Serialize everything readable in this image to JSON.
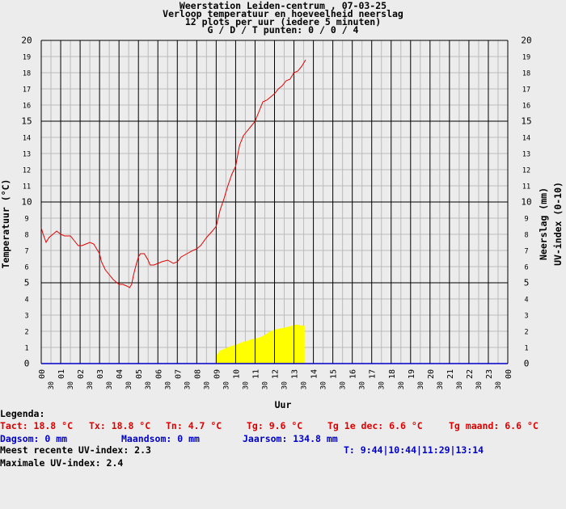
{
  "header": {
    "line1": "Weerstation Leiden-centrum , 07-03-25",
    "line2": "Verloop temperatuur en hoeveelheid neerslag",
    "line3": "12 plots per uur (iedere 5 minuten)",
    "line4": "G / D / T punten: 0 / 0 / 4"
  },
  "chart_data": {
    "type": "line",
    "xlabel": "Uur",
    "ylabel_left": "Temperatuur (°C)",
    "ylabel_right_1": "Neerslag (mm)",
    "ylabel_right_2": "UV-index (0-10)",
    "ylim": [
      0,
      20
    ],
    "xlim_hours": [
      0,
      24
    ],
    "hour_tick_labels": [
      "00",
      "01",
      "02",
      "03",
      "04",
      "05",
      "06",
      "07",
      "08",
      "09",
      "10",
      "11",
      "12",
      "13",
      "14",
      "15",
      "16",
      "17",
      "18",
      "19",
      "20",
      "21",
      "22",
      "23",
      "00"
    ],
    "half_hour_tick_label": "30",
    "y_ticks": [
      0,
      1,
      2,
      3,
      4,
      5,
      6,
      7,
      8,
      9,
      10,
      11,
      12,
      13,
      14,
      15,
      16,
      17,
      18,
      19,
      20
    ],
    "major_y_ticks": [
      0,
      5,
      10,
      15,
      20
    ],
    "grid": true,
    "colors": {
      "temperature": "#e00000",
      "uv": "#ffff00",
      "precipitation": "#0000cc",
      "major_grid": "#000000",
      "minor_grid": "#bbbbbb"
    },
    "series": [
      {
        "name": "Temperatuur",
        "x_hours": [
          0.0,
          0.1,
          0.25,
          0.4,
          0.6,
          0.8,
          1.0,
          1.2,
          1.5,
          1.7,
          1.9,
          2.1,
          2.3,
          2.5,
          2.7,
          2.9,
          3.0,
          3.1,
          3.3,
          3.5,
          3.7,
          3.9,
          4.0,
          4.2,
          4.4,
          4.55,
          4.65,
          4.75,
          4.9,
          5.0,
          5.1,
          5.3,
          5.5,
          5.6,
          5.8,
          6.0,
          6.2,
          6.5,
          6.8,
          7.0,
          7.2,
          7.5,
          7.8,
          8.0,
          8.2,
          8.5,
          8.8,
          9.0,
          9.2,
          9.4,
          9.6,
          9.8,
          10.0,
          10.2,
          10.4,
          10.6,
          10.8,
          11.0,
          11.2,
          11.4,
          11.6,
          11.8,
          12.0,
          12.2,
          12.4,
          12.6,
          12.8,
          13.0,
          13.2,
          13.4,
          13.6
        ],
        "values": [
          8.4,
          8.0,
          7.5,
          7.8,
          8.0,
          8.2,
          8.0,
          7.9,
          7.9,
          7.6,
          7.3,
          7.3,
          7.4,
          7.5,
          7.4,
          7.0,
          6.8,
          6.3,
          5.8,
          5.5,
          5.2,
          5.0,
          4.9,
          4.9,
          4.8,
          4.7,
          4.9,
          5.5,
          6.2,
          6.6,
          6.8,
          6.8,
          6.4,
          6.1,
          6.1,
          6.2,
          6.3,
          6.4,
          6.2,
          6.3,
          6.6,
          6.8,
          7.0,
          7.1,
          7.3,
          7.8,
          8.2,
          8.5,
          9.5,
          10.2,
          11.0,
          11.7,
          12.2,
          13.5,
          14.1,
          14.4,
          14.7,
          15.0,
          15.6,
          16.2,
          16.3,
          16.5,
          16.7,
          17.0,
          17.2,
          17.5,
          17.6,
          18.0,
          18.1,
          18.4,
          18.8
        ]
      },
      {
        "name": "UV-index",
        "x_hours": [
          9.0,
          9.2,
          9.4,
          9.6,
          9.8,
          10.0,
          10.2,
          10.4,
          10.6,
          10.8,
          11.0,
          11.2,
          11.4,
          11.6,
          11.8,
          12.0,
          12.2,
          12.4,
          12.6,
          12.8,
          13.0,
          13.2,
          13.4,
          13.55
        ],
        "values": [
          0.5,
          0.8,
          0.9,
          1.0,
          1.1,
          1.15,
          1.25,
          1.35,
          1.4,
          1.5,
          1.55,
          1.6,
          1.7,
          1.85,
          2.0,
          2.1,
          2.15,
          2.2,
          2.25,
          2.3,
          2.4,
          2.4,
          2.35,
          2.35
        ]
      },
      {
        "name": "Neerslag",
        "x_hours": [
          0,
          24
        ],
        "values": [
          0,
          0
        ]
      }
    ]
  },
  "info": {
    "legenda": "Legenda:",
    "tact": "Tact: 18.8 °C",
    "tx": "Tx: 18.8 °C",
    "tn": "Tn: 4.7 °C",
    "tg": "Tg: 9.6 °C",
    "tg_dec": "Tg 1e dec: 6.6 °C",
    "tg_maand": "Tg maand: 6.6 °C",
    "dagsom": "Dagsom: 0 mm",
    "maandsom": "Maandsom: 0 mm",
    "jaarsom": "Jaarsom: 134.8 mm",
    "uv_recent": "Meest recente UV-index: 2.3",
    "uv_times": "T: 9:44|10:44|11:29|13:14",
    "uv_max": "Maximale UV-index: 2.4"
  }
}
